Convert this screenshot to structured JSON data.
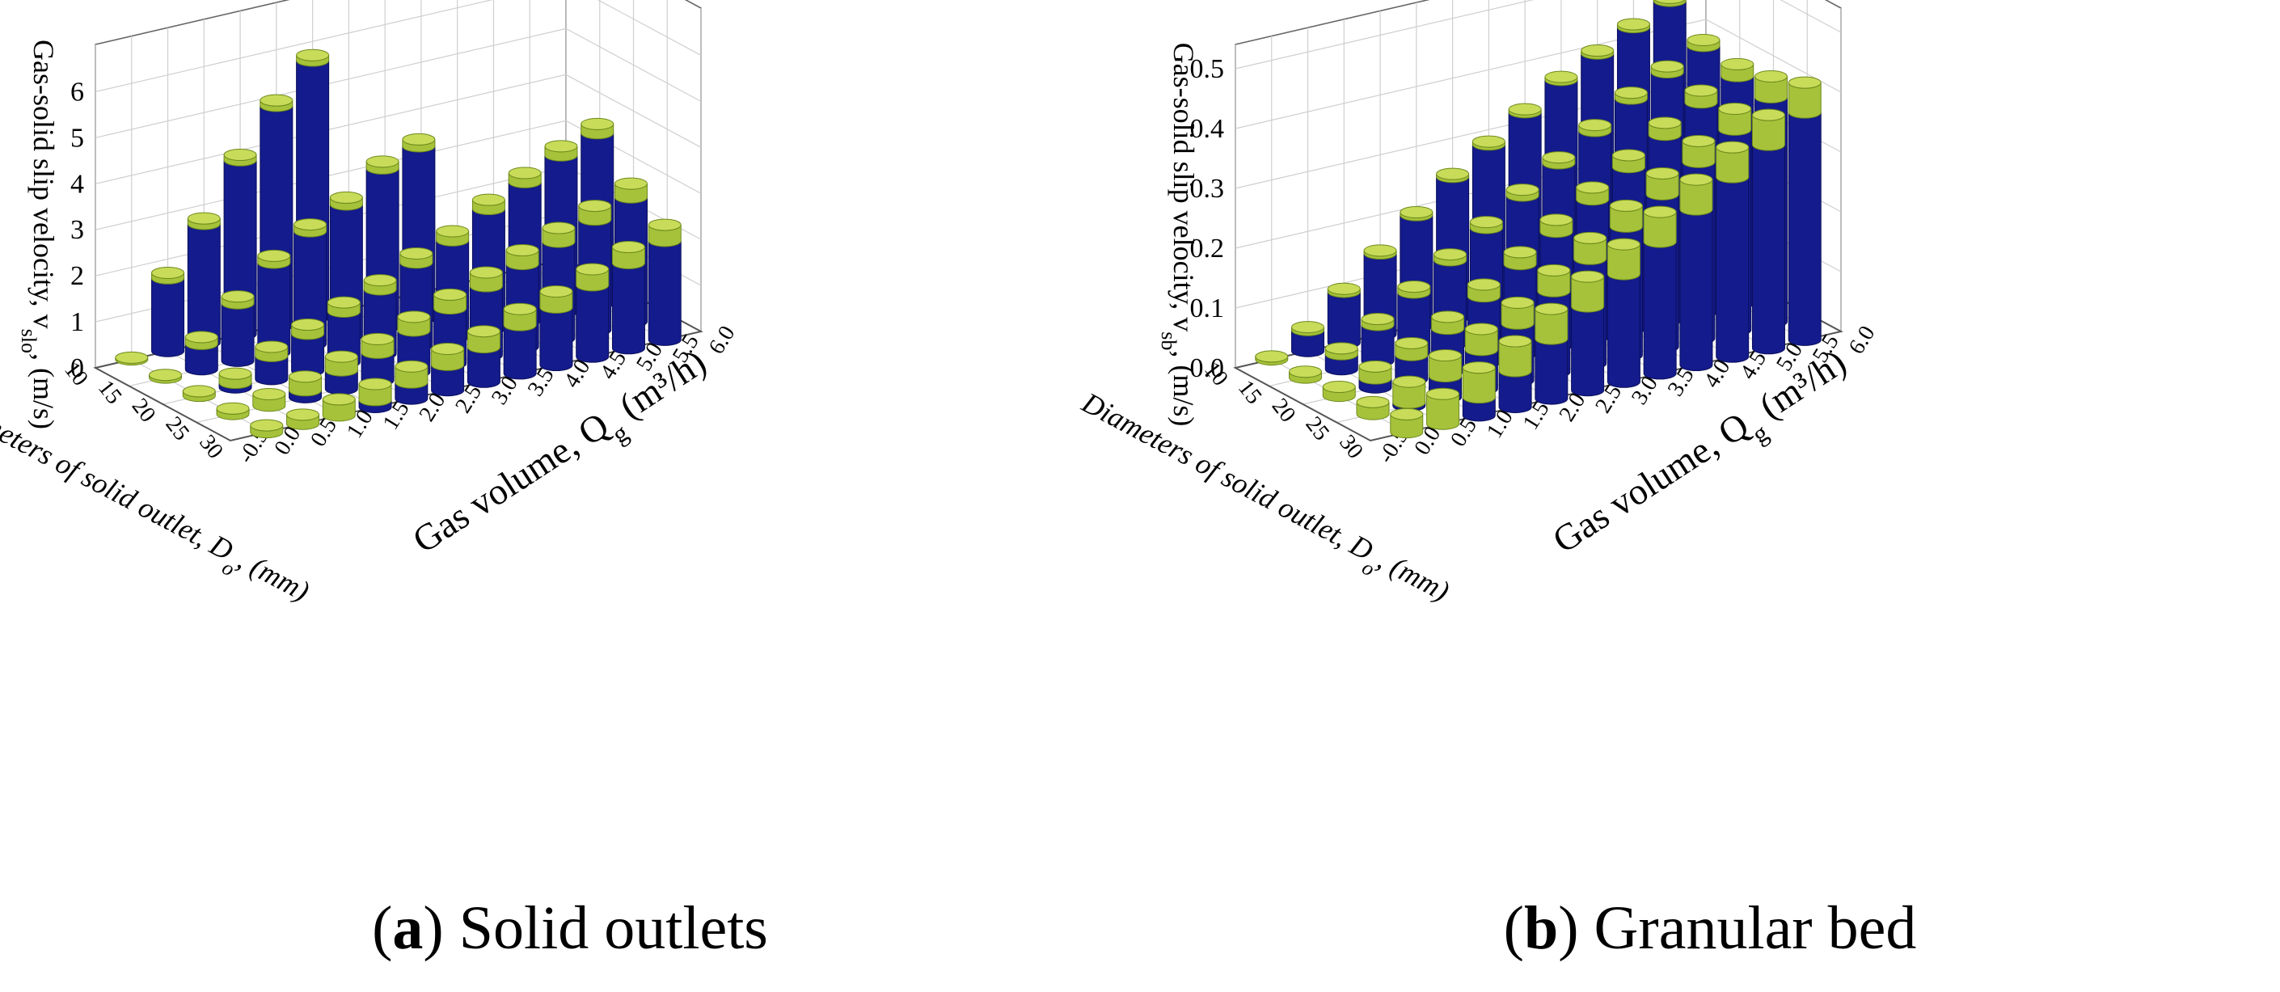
{
  "panels": [
    {
      "caption_letter": "a",
      "caption_text": " Solid outlets",
      "chart_data": {
        "type": "bar3d",
        "ylabel": "Gas-solid slip velocity, v",
        "ylabel_sub": "slo",
        "ylabel_unit": ", (m/s)",
        "xlabel": "Diameters of solid outlet, ",
        "xlabel_var": "D",
        "xlabel_sub": "o",
        "xlabel_unit": ", (mm)",
        "zlabel": "Gas volume, Q",
        "zlabel_sub": "g",
        "zlabel_unit": " (m³/h)",
        "ylim": [
          0,
          6.5
        ],
        "yticks": [
          "0",
          "1",
          "2",
          "3",
          "4",
          "5",
          "6"
        ],
        "ytick_values": [
          0,
          1,
          2,
          3,
          4,
          5,
          6
        ],
        "xticks": [
          "10",
          "15",
          "20",
          "25",
          "30"
        ],
        "zticks": [
          "-0.5",
          "0.0",
          "0.5",
          "1.0",
          "1.5",
          "2.0",
          "2.5",
          "3.0",
          "3.5",
          "4.0",
          "4.5",
          "5.0",
          "5.5",
          "6.0"
        ],
        "grid": true,
        "colors": {
          "bar": "#141b8c",
          "bar_dark": "#0a0f5a",
          "cap": "#a6c23a",
          "cap_dark": "#6e8a1c"
        },
        "diameters": [
          10,
          15,
          20,
          25,
          30
        ],
        "gas_volumes": [
          0.0,
          0.5,
          1.0,
          1.5,
          2.0,
          2.5,
          3.0,
          3.5,
          4.0,
          4.5,
          5.0,
          5.5
        ],
        "series": [
          {
            "name": "10",
            "values": [
              0.04,
              1.7,
              2.7,
              3.9,
              4.9,
              5.7,
              null,
              null,
              null,
              null,
              null,
              null
            ]
          },
          {
            "name": "15",
            "values": [
              0.06,
              0.7,
              1.4,
              2.1,
              2.6,
              3.0,
              3.6,
              3.9,
              null,
              null,
              null,
              null
            ]
          },
          {
            "name": "20",
            "values": [
              0.1,
              0.3,
              0.7,
              1.0,
              1.3,
              1.6,
              2.0,
              2.3,
              2.8,
              3.2,
              3.6,
              3.9
            ]
          },
          {
            "name": "25",
            "values": [
              0.12,
              0.25,
              0.45,
              0.7,
              0.9,
              1.2,
              1.5,
              1.8,
              2.1,
              2.4,
              2.7,
              3.0
            ]
          },
          {
            "name": "30",
            "values": [
              0.15,
              0.2,
              0.35,
              0.5,
              0.7,
              0.9,
              1.1,
              1.4,
              1.6,
              1.9,
              2.2,
              2.5
            ]
          }
        ],
        "cap_heights": [
          0.12,
          0.15,
          0.2,
          0.3,
          0.35
        ]
      }
    },
    {
      "caption_letter": "b",
      "caption_text": " Granular bed",
      "chart_data": {
        "type": "bar3d",
        "ylabel": "Gas-solid slip velocity, v",
        "ylabel_sub": "sb",
        "ylabel_unit": ", (m/s)",
        "xlabel": "Diameters of solid outlet, ",
        "xlabel_var": "D",
        "xlabel_sub": "o",
        "xlabel_unit": ", (mm)",
        "zlabel": "Gas volume, Q",
        "zlabel_sub": "g",
        "zlabel_unit": " (m³/h)",
        "ylim": [
          0,
          0.5
        ],
        "yticks": [
          "0.0",
          "0.1",
          "0.2",
          "0.3",
          "0.4",
          "0.5"
        ],
        "ytick_values": [
          0,
          0.1,
          0.2,
          0.3,
          0.4,
          0.5
        ],
        "xticks": [
          "10",
          "15",
          "20",
          "25",
          "30"
        ],
        "zticks": [
          "-0.5",
          "0.0",
          "0.5",
          "1.0",
          "1.5",
          "2.0",
          "2.5",
          "3.0",
          "3.5",
          "4.0",
          "4.5",
          "5.0",
          "5.5",
          "6.0"
        ],
        "grid": true,
        "colors": {
          "bar": "#141b8c",
          "bar_dark": "#0a0f5a",
          "cap": "#a6c23a",
          "cap_dark": "#6e8a1c"
        },
        "diameters": [
          10,
          15,
          20,
          25,
          30
        ],
        "gas_volumes": [
          0.0,
          0.5,
          1.0,
          1.5,
          2.0,
          2.5,
          3.0,
          3.5,
          4.0,
          4.5,
          5.0,
          5.5
        ],
        "series": [
          {
            "name": "10",
            "values": [
              0.005,
              0.04,
              0.09,
              0.14,
              0.19,
              0.24,
              0.28,
              0.32,
              0.36,
              0.39,
              0.42,
              0.45
            ]
          },
          {
            "name": "15",
            "values": [
              0.01,
              0.035,
              0.07,
              0.11,
              0.15,
              0.19,
              0.23,
              0.27,
              0.31,
              0.35,
              0.38,
              0.41
            ]
          },
          {
            "name": "20",
            "values": [
              0.015,
              0.035,
              0.06,
              0.09,
              0.13,
              0.17,
              0.21,
              0.25,
              0.29,
              0.33,
              0.37,
              0.4
            ]
          },
          {
            "name": "25",
            "values": [
              0.02,
              0.04,
              0.07,
              0.1,
              0.13,
              0.17,
              0.21,
              0.25,
              0.29,
              0.33,
              0.37,
              0.41
            ]
          },
          {
            "name": "30",
            "values": [
              0.03,
              0.05,
              0.08,
              0.11,
              0.15,
              0.19,
              0.23,
              0.27,
              0.31,
              0.35,
              0.39,
              0.43
            ]
          }
        ],
        "cap_heights": [
          0.005,
          0.01,
          0.02,
          0.035,
          0.05
        ]
      }
    }
  ]
}
